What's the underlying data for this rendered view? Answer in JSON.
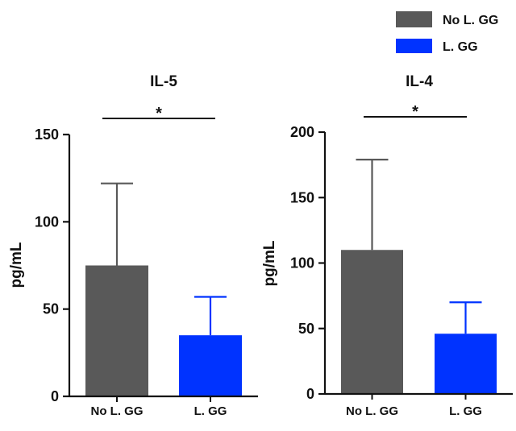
{
  "colors": {
    "no_lgg": "#595959",
    "lgg": "#0033ff",
    "axis": "#111111"
  },
  "legend": [
    {
      "label": "No L. GG",
      "color": "#595959"
    },
    {
      "label": "L. GG",
      "color": "#0033ff"
    }
  ],
  "chart_data": [
    {
      "type": "bar",
      "title": "IL-5",
      "ylabel": "pg/mL",
      "categories": [
        "No L. GG",
        "L. GG"
      ],
      "values": [
        75,
        35
      ],
      "error_upper": [
        47,
        22
      ],
      "ylim": [
        0,
        150
      ],
      "yticks": [
        0,
        50,
        100,
        150
      ],
      "significance": "*",
      "grid": false
    },
    {
      "type": "bar",
      "title": "IL-4",
      "ylabel": "pg/mL",
      "categories": [
        "No L. GG",
        "L. GG"
      ],
      "values": [
        110,
        46
      ],
      "error_upper": [
        69,
        24
      ],
      "ylim": [
        0,
        200
      ],
      "yticks": [
        0,
        50,
        100,
        150,
        200
      ],
      "significance": "*",
      "grid": false
    }
  ]
}
